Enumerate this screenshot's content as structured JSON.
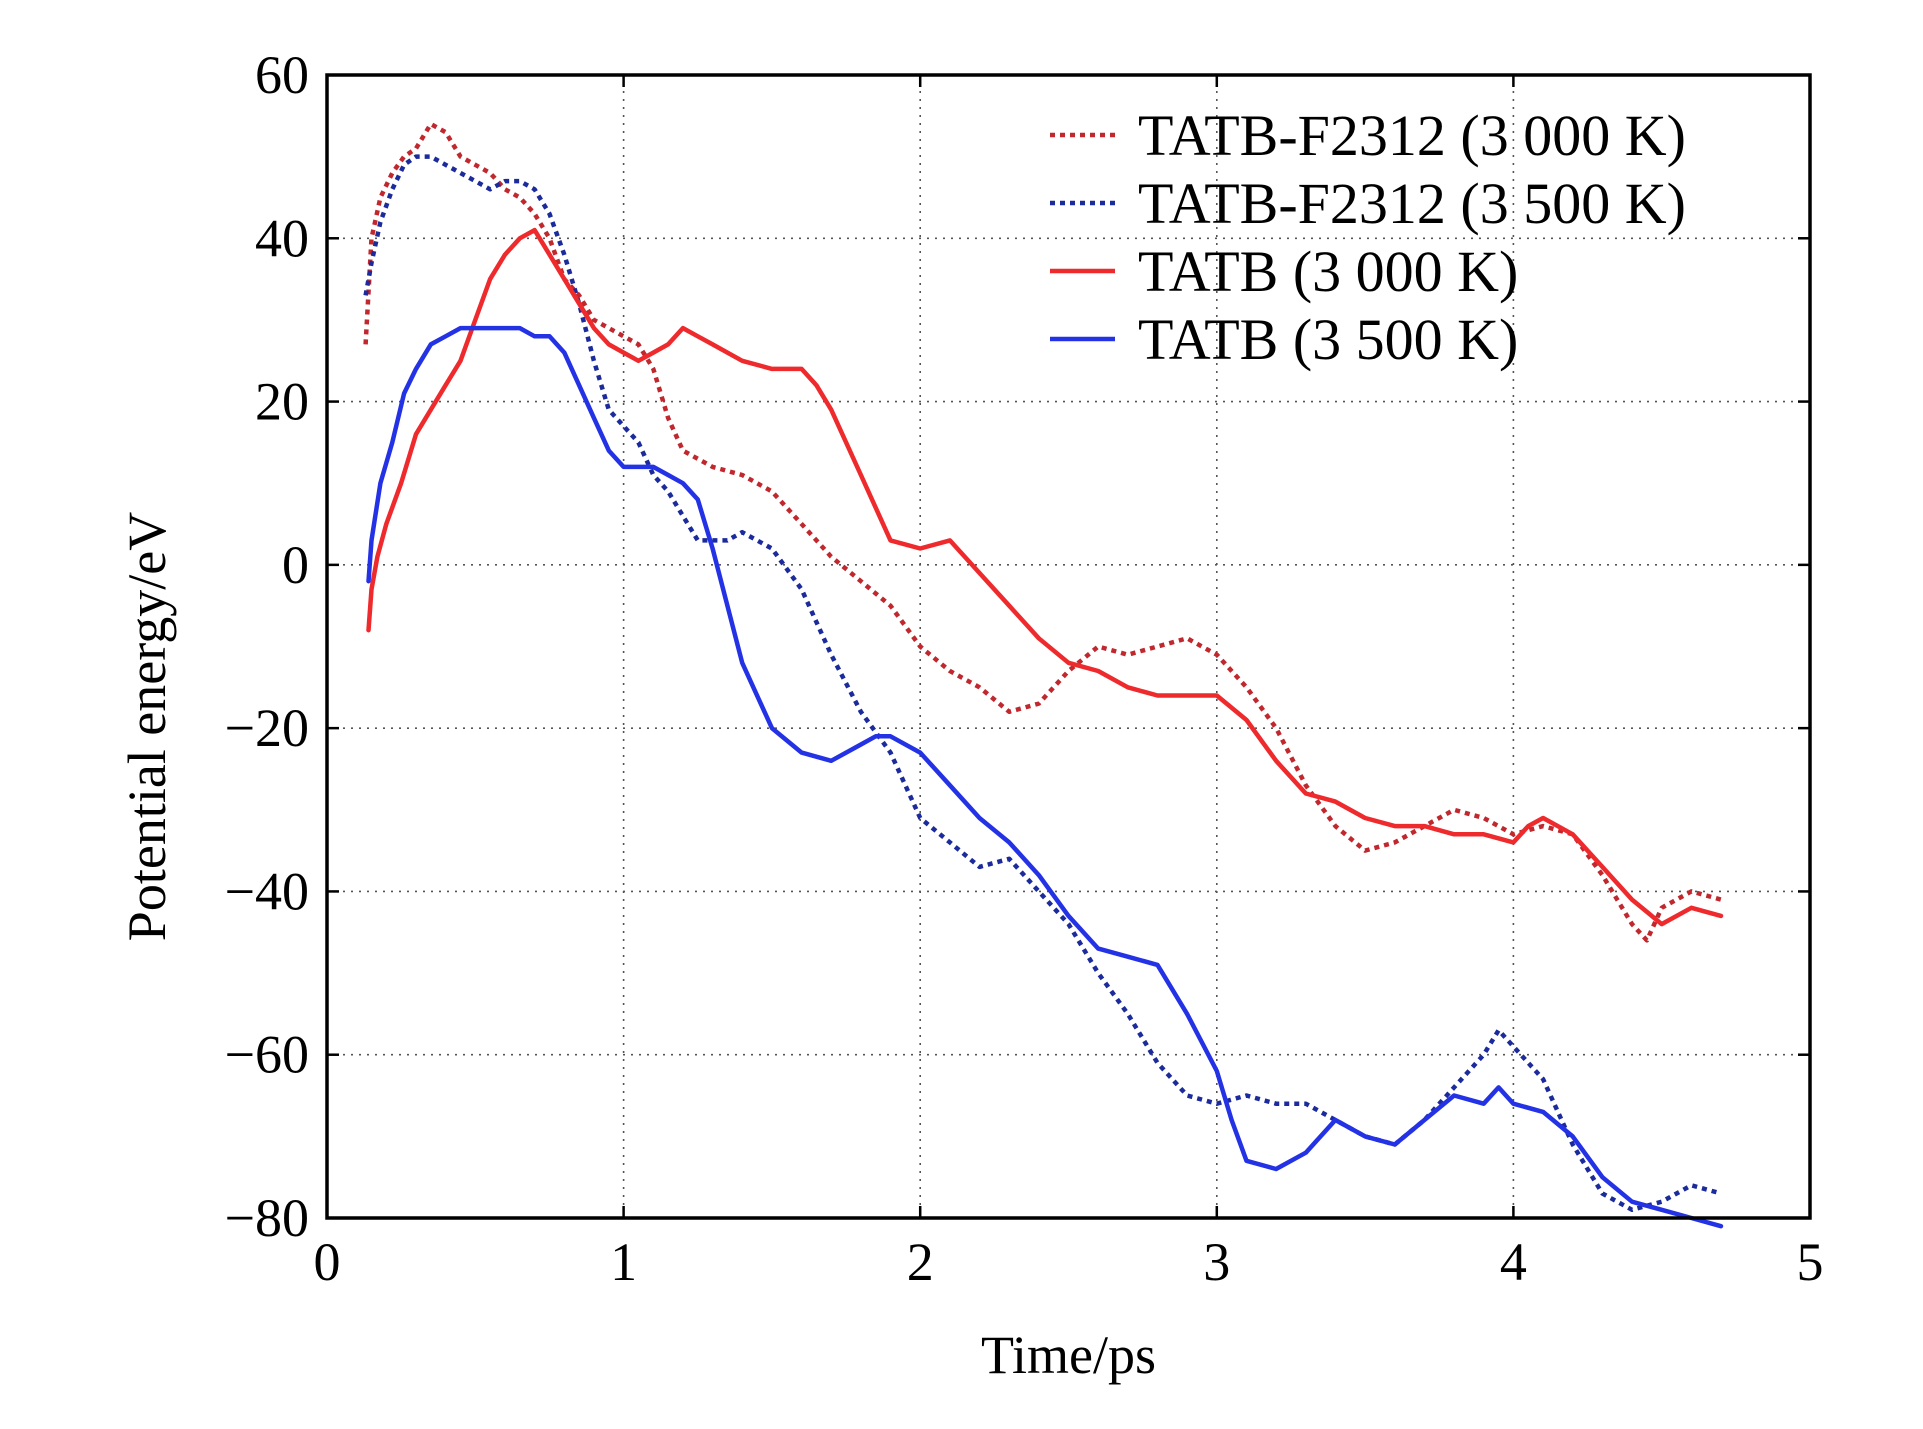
{
  "chart_data": {
    "type": "line",
    "title": "",
    "xlabel": "Time/ps",
    "ylabel": "Potential energy/eV",
    "xlim": [
      0,
      5
    ],
    "ylim": [
      -80,
      60
    ],
    "xticks": [
      0,
      1,
      2,
      3,
      4,
      5
    ],
    "yticks": [
      -80,
      -60,
      -40,
      -20,
      0,
      20,
      40,
      60
    ],
    "xtick_labels": [
      "0",
      "1",
      "2",
      "3",
      "4",
      "5"
    ],
    "ytick_labels": [
      "−80",
      "−60",
      "−40",
      "−20",
      "0",
      "20",
      "40",
      "60"
    ],
    "grid": true,
    "legend_position": "top-right",
    "series": [
      {
        "name": "TATB-F2312 (3 000 K)",
        "color": "#c0282e",
        "style": "dotted",
        "x": [
          0.13,
          0.15,
          0.18,
          0.22,
          0.26,
          0.3,
          0.35,
          0.4,
          0.45,
          0.5,
          0.55,
          0.6,
          0.65,
          0.7,
          0.75,
          0.8,
          0.85,
          0.9,
          0.95,
          1.0,
          1.05,
          1.1,
          1.15,
          1.2,
          1.3,
          1.4,
          1.5,
          1.6,
          1.7,
          1.8,
          1.9,
          2.0,
          2.1,
          2.2,
          2.3,
          2.4,
          2.5,
          2.6,
          2.7,
          2.8,
          2.9,
          3.0,
          3.1,
          3.2,
          3.3,
          3.4,
          3.5,
          3.6,
          3.7,
          3.8,
          3.9,
          4.0,
          4.1,
          4.2,
          4.3,
          4.4,
          4.45,
          4.5,
          4.6,
          4.7
        ],
        "values": [
          27,
          40,
          45,
          48,
          50,
          51,
          54,
          53,
          50,
          49,
          48,
          46,
          45,
          43,
          40,
          35,
          33,
          30,
          29,
          28,
          27,
          24,
          18,
          14,
          12,
          11,
          9,
          5,
          1,
          -2,
          -5,
          -10,
          -13,
          -15,
          -18,
          -17,
          -13,
          -10,
          -11,
          -10,
          -9,
          -11,
          -15,
          -20,
          -27,
          -32,
          -35,
          -34,
          -32,
          -30,
          -31,
          -33,
          -32,
          -33,
          -38,
          -44,
          -46,
          -42,
          -40,
          -41
        ]
      },
      {
        "name": "TATB-F2312 (3 500 K)",
        "color": "#1c2b9c",
        "style": "dotted",
        "x": [
          0.13,
          0.15,
          0.18,
          0.22,
          0.26,
          0.3,
          0.35,
          0.4,
          0.45,
          0.5,
          0.55,
          0.6,
          0.65,
          0.7,
          0.75,
          0.8,
          0.85,
          0.9,
          0.95,
          1.0,
          1.05,
          1.1,
          1.15,
          1.2,
          1.25,
          1.3,
          1.35,
          1.4,
          1.45,
          1.5,
          1.6,
          1.7,
          1.8,
          1.9,
          2.0,
          2.1,
          2.2,
          2.3,
          2.4,
          2.5,
          2.6,
          2.7,
          2.8,
          2.9,
          3.0,
          3.1,
          3.2,
          3.3,
          3.4,
          3.5,
          3.6,
          3.7,
          3.8,
          3.9,
          3.95,
          4.0,
          4.1,
          4.2,
          4.3,
          4.4,
          4.5,
          4.6,
          4.7
        ],
        "values": [
          33,
          37,
          42,
          46,
          49,
          50,
          50,
          49,
          48,
          47,
          46,
          47,
          47,
          46,
          43,
          38,
          32,
          25,
          19,
          17,
          15,
          11,
          9,
          6,
          3,
          3,
          3,
          4,
          3,
          2,
          -3,
          -11,
          -18,
          -23,
          -31,
          -34,
          -37,
          -36,
          -40,
          -44,
          -50,
          -55,
          -61,
          -65,
          -66,
          -65,
          -66,
          -66,
          -68,
          -70,
          -71,
          -68,
          -64,
          -60,
          -57,
          -59,
          -63,
          -71,
          -77,
          -79,
          -78,
          -76,
          -77
        ]
      },
      {
        "name": "TATB (3 000 K)",
        "color": "#ee2a2c",
        "style": "solid",
        "x": [
          0.14,
          0.15,
          0.17,
          0.2,
          0.25,
          0.3,
          0.35,
          0.4,
          0.45,
          0.5,
          0.55,
          0.6,
          0.65,
          0.7,
          0.75,
          0.8,
          0.85,
          0.9,
          0.95,
          1.0,
          1.05,
          1.1,
          1.15,
          1.2,
          1.25,
          1.3,
          1.4,
          1.5,
          1.6,
          1.65,
          1.7,
          1.8,
          1.9,
          2.0,
          2.1,
          2.2,
          2.3,
          2.4,
          2.5,
          2.6,
          2.7,
          2.8,
          2.9,
          3.0,
          3.1,
          3.2,
          3.3,
          3.4,
          3.5,
          3.6,
          3.7,
          3.8,
          3.9,
          4.0,
          4.05,
          4.1,
          4.2,
          4.3,
          4.4,
          4.5,
          4.6,
          4.7
        ],
        "values": [
          -8,
          -3,
          1,
          5,
          10,
          16,
          19,
          22,
          25,
          30,
          35,
          38,
          40,
          41,
          38,
          35,
          32,
          29,
          27,
          26,
          25,
          26,
          27,
          29,
          28,
          27,
          25,
          24,
          24,
          22,
          19,
          11,
          3,
          2,
          3,
          -1,
          -5,
          -9,
          -12,
          -13,
          -15,
          -16,
          -16,
          -16,
          -19,
          -24,
          -28,
          -29,
          -31,
          -32,
          -32,
          -33,
          -33,
          -34,
          -32,
          -31,
          -33,
          -37,
          -41,
          -44,
          -42,
          -43
        ]
      },
      {
        "name": "TATB (3 500 K)",
        "color": "#2432e6",
        "style": "solid",
        "x": [
          0.14,
          0.15,
          0.18,
          0.22,
          0.26,
          0.3,
          0.35,
          0.4,
          0.45,
          0.5,
          0.55,
          0.6,
          0.65,
          0.7,
          0.75,
          0.8,
          0.85,
          0.9,
          0.95,
          1.0,
          1.05,
          1.1,
          1.15,
          1.2,
          1.25,
          1.3,
          1.35,
          1.4,
          1.5,
          1.6,
          1.7,
          1.8,
          1.85,
          1.9,
          2.0,
          2.1,
          2.2,
          2.3,
          2.4,
          2.5,
          2.6,
          2.7,
          2.8,
          2.9,
          3.0,
          3.05,
          3.1,
          3.2,
          3.3,
          3.4,
          3.5,
          3.6,
          3.7,
          3.8,
          3.9,
          3.95,
          4.0,
          4.1,
          4.2,
          4.3,
          4.4,
          4.5,
          4.6,
          4.7
        ],
        "values": [
          -2,
          3,
          10,
          15,
          21,
          24,
          27,
          28,
          29,
          29,
          29,
          29,
          29,
          28,
          28,
          26,
          22,
          18,
          14,
          12,
          12,
          12,
          11,
          10,
          8,
          2,
          -5,
          -12,
          -20,
          -23,
          -24,
          -22,
          -21,
          -21,
          -23,
          -27,
          -31,
          -34,
          -38,
          -43,
          -47,
          -48,
          -49,
          -55,
          -62,
          -68,
          -73,
          -74,
          -72,
          -68,
          -70,
          -71,
          -68,
          -65,
          -66,
          -64,
          -66,
          -67,
          -70,
          -75,
          -78,
          -79,
          -80,
          -81
        ]
      }
    ]
  }
}
